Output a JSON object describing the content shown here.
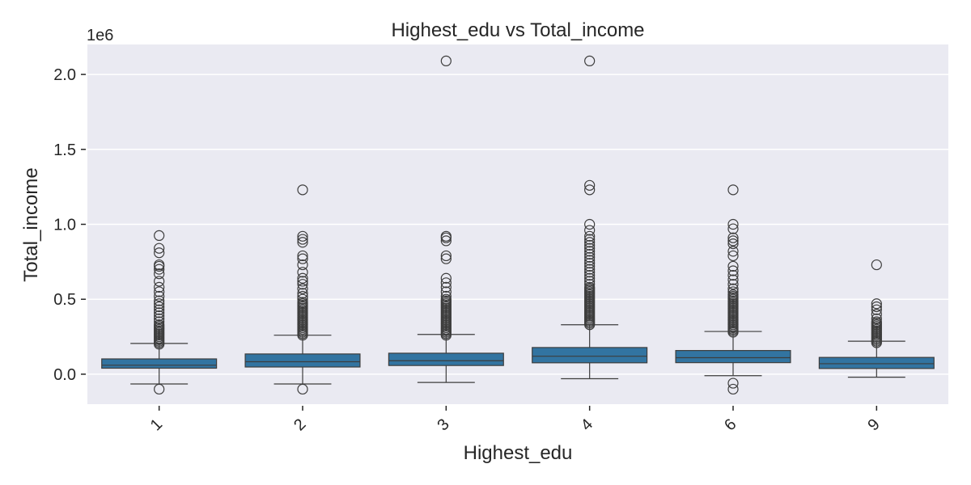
{
  "chart_data": {
    "type": "box",
    "title": "Highest_edu vs Total_income",
    "xlabel": "Highest_edu",
    "ylabel": "Total_income",
    "y_offset_label": "1e6",
    "ylim": [
      -0.2,
      2.2
    ],
    "yticks": [
      0.0,
      0.5,
      1.0,
      1.5,
      2.0
    ],
    "ytick_labels": [
      "0.0",
      "0.5",
      "1.0",
      "1.5",
      "2.0"
    ],
    "grid": true,
    "x_tick_rotation": -45,
    "colors": {
      "box_fill": "#3274a1",
      "box_edge": "#3d3d3d",
      "background": "#eaeaf2",
      "grid": "#ffffff",
      "text": "#262626"
    },
    "boxes": [
      {
        "category": "1",
        "q1": 0.04,
        "median": 0.06,
        "q3": 0.102,
        "whisker_low": -0.065,
        "whisker_high": 0.205,
        "outliers": [
          -0.1,
          0.2,
          0.21,
          0.22,
          0.23,
          0.24,
          0.25,
          0.26,
          0.27,
          0.28,
          0.29,
          0.3,
          0.31,
          0.32,
          0.33,
          0.35,
          0.37,
          0.39,
          0.41,
          0.43,
          0.45,
          0.47,
          0.49,
          0.52,
          0.55,
          0.58,
          0.62,
          0.67,
          0.7,
          0.72,
          0.73,
          0.81,
          0.84,
          0.925
        ]
      },
      {
        "category": "2",
        "q1": 0.048,
        "median": 0.083,
        "q3": 0.135,
        "whisker_low": -0.065,
        "whisker_high": 0.26,
        "outliers": [
          -0.1,
          0.26,
          0.27,
          0.28,
          0.29,
          0.3,
          0.31,
          0.32,
          0.33,
          0.34,
          0.35,
          0.36,
          0.37,
          0.38,
          0.39,
          0.4,
          0.41,
          0.42,
          0.43,
          0.44,
          0.45,
          0.46,
          0.47,
          0.48,
          0.5,
          0.52,
          0.54,
          0.57,
          0.6,
          0.62,
          0.64,
          0.68,
          0.73,
          0.77,
          0.79,
          0.88,
          0.9,
          0.92,
          1.23
        ]
      },
      {
        "category": "3",
        "q1": 0.058,
        "median": 0.09,
        "q3": 0.14,
        "whisker_low": -0.055,
        "whisker_high": 0.265,
        "outliers": [
          0.26,
          0.27,
          0.28,
          0.29,
          0.3,
          0.31,
          0.32,
          0.33,
          0.34,
          0.35,
          0.36,
          0.37,
          0.38,
          0.39,
          0.4,
          0.41,
          0.42,
          0.43,
          0.44,
          0.45,
          0.46,
          0.47,
          0.48,
          0.49,
          0.5,
          0.52,
          0.55,
          0.58,
          0.61,
          0.64,
          0.77,
          0.79,
          0.89,
          0.91,
          0.92,
          2.09
        ]
      },
      {
        "category": "4",
        "q1": 0.076,
        "median": 0.12,
        "q3": 0.178,
        "whisker_low": -0.03,
        "whisker_high": 0.33,
        "outliers": [
          0.33,
          0.34,
          0.35,
          0.36,
          0.37,
          0.38,
          0.39,
          0.4,
          0.41,
          0.42,
          0.43,
          0.44,
          0.45,
          0.46,
          0.47,
          0.48,
          0.49,
          0.5,
          0.51,
          0.52,
          0.53,
          0.54,
          0.55,
          0.56,
          0.57,
          0.58,
          0.6,
          0.62,
          0.64,
          0.66,
          0.68,
          0.7,
          0.72,
          0.74,
          0.76,
          0.78,
          0.8,
          0.82,
          0.84,
          0.86,
          0.88,
          0.9,
          0.92,
          0.96,
          1.0,
          1.23,
          1.26,
          2.09
        ]
      },
      {
        "category": "6",
        "q1": 0.077,
        "median": 0.11,
        "q3": 0.158,
        "whisker_low": -0.01,
        "whisker_high": 0.285,
        "outliers": [
          -0.1,
          -0.06,
          0.28,
          0.29,
          0.3,
          0.31,
          0.32,
          0.33,
          0.34,
          0.35,
          0.36,
          0.37,
          0.38,
          0.39,
          0.4,
          0.41,
          0.42,
          0.43,
          0.44,
          0.45,
          0.46,
          0.47,
          0.48,
          0.49,
          0.5,
          0.51,
          0.52,
          0.53,
          0.55,
          0.57,
          0.6,
          0.63,
          0.66,
          0.69,
          0.72,
          0.79,
          0.82,
          0.87,
          0.89,
          0.91,
          0.97,
          1.0,
          1.23
        ]
      },
      {
        "category": "9",
        "q1": 0.038,
        "median": 0.07,
        "q3": 0.112,
        "whisker_low": -0.02,
        "whisker_high": 0.22,
        "outliers": [
          0.21,
          0.22,
          0.23,
          0.24,
          0.25,
          0.26,
          0.27,
          0.28,
          0.29,
          0.3,
          0.31,
          0.32,
          0.33,
          0.34,
          0.35,
          0.37,
          0.4,
          0.43,
          0.45,
          0.47,
          0.73
        ]
      }
    ]
  }
}
